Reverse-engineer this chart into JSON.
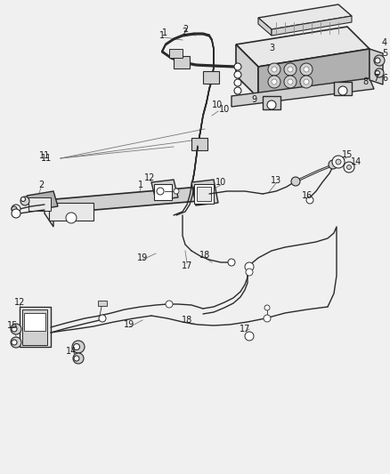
{
  "background_color": "#f0f0f0",
  "line_color": "#2a2a2a",
  "label_color": "#1a1a1a",
  "fig_width": 4.38,
  "fig_height": 5.33,
  "dpi": 100,
  "gray_bg": "#e8e8e8",
  "gray_mid": "#b0b0b0",
  "gray_dark": "#606060",
  "gray_light": "#d0d0d0"
}
